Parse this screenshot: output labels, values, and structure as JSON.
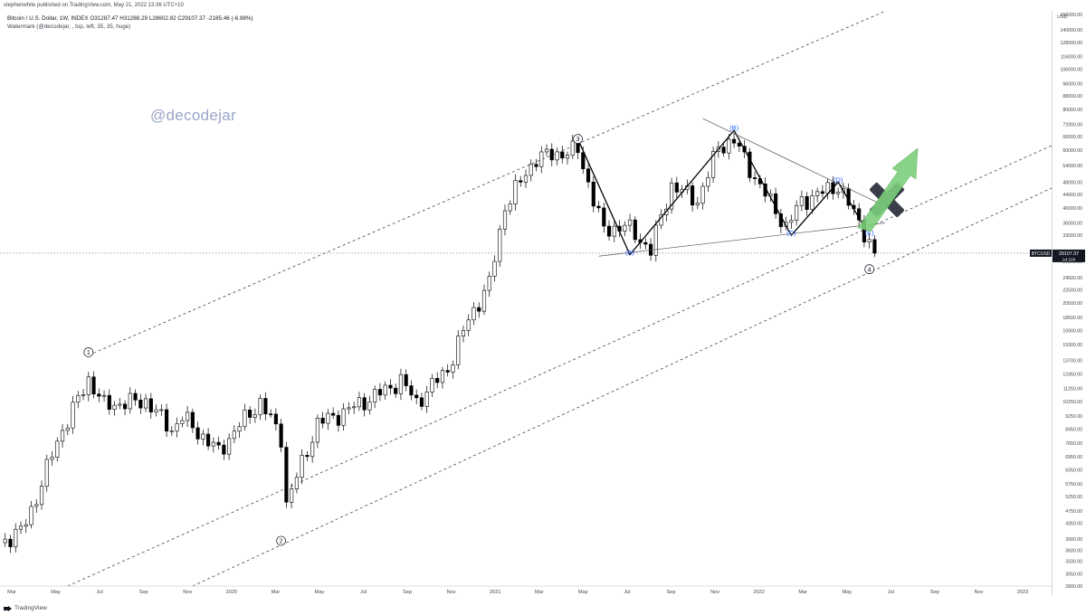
{
  "header": "stephenwhite published on TradingView.com, May 21, 2022 13:36 UTC+10",
  "legend": {
    "line1": "Bitcoin / U.S. Dollar, 1W, INDEX  O31287.47  H31288.29  L28602.82  C29107.37  -2185.46 (-6.98%)",
    "line2": "Watermark (@decodejar, , top, left, 35, 35, huge)"
  },
  "watermark": "@decodejar",
  "footer": {
    "brand": "TradingView"
  },
  "colors": {
    "candle_up_fill": "#ffffff",
    "candle_down_fill": "#000000",
    "candle_outline": "#000000",
    "channel_line": "#434651",
    "arrow_green": "#7ccf7c",
    "cross": "#3a3e48",
    "wave_label_blue": "#2962ff"
  },
  "icons": [
    "tradingview-logo-icon",
    "x-cross-icon",
    "green-arrow-icon"
  ],
  "chart_data": {
    "type": "candlestick",
    "symbol": "BTCUSD",
    "interval": "1W",
    "y_axis": {
      "unit": "USD",
      "scale": "log",
      "ylim": [
        2800,
        160000
      ],
      "ticks": [
        156000,
        140000,
        128000,
        116000,
        106000,
        96000,
        88000,
        80000,
        72000,
        66000,
        60000,
        54000,
        48000,
        44000,
        40000,
        36000,
        33000,
        27500,
        24500,
        22500,
        20500,
        18500,
        16900,
        15300,
        13700,
        12450,
        11250,
        10250,
        9250,
        8450,
        7650,
        6950,
        6350,
        5750,
        5250,
        4750,
        4350,
        3900,
        3600,
        3330,
        3050,
        2800
      ],
      "tick_labels": [
        "156000.00",
        "140000.00",
        "128000.00",
        "116000.00",
        "106000.00",
        "96000.00",
        "88000.00",
        "80000.00",
        "72000.00",
        "66000.00",
        "60000.00",
        "54000.00",
        "48000.00",
        "44000.00",
        "40000.00",
        "36000.00",
        "33000.00",
        "27500.00",
        "24500.00",
        "22500.00",
        "20500.00",
        "18500.00",
        "16900.00",
        "15300.00",
        "13700.00",
        "12450.00",
        "11250.00",
        "10250.00",
        "9250.00",
        "8450.00",
        "7650.00",
        "6950.00",
        "6350.00",
        "5750.00",
        "5250.00",
        "4750.00",
        "4350.00",
        "3900.00",
        "3600.00",
        "3330.00",
        "3050.00",
        "2800.00"
      ]
    },
    "x_axis": {
      "labels": [
        "Mar",
        "May",
        "Jul",
        "Sep",
        "Nov",
        "2020",
        "Mar",
        "May",
        "Jul",
        "Sep",
        "Nov",
        "2021",
        "Mar",
        "May",
        "Jul",
        "Sep",
        "Nov",
        "2022",
        "Mar",
        "May",
        "Jul",
        "Sep",
        "Nov",
        "2023"
      ],
      "range": [
        "2019-02-25",
        "2023-01-09"
      ]
    },
    "price_label": {
      "symbol": "BTCUSD",
      "price": "29107.37",
      "countdown": "1d 21h",
      "value": 29107.37
    },
    "weekly_close_anchors": [
      [
        "2019-02-25",
        3800
      ],
      [
        "2019-03-25",
        4100
      ],
      [
        "2019-04-15",
        5200
      ],
      [
        "2019-05-13",
        7800
      ],
      [
        "2019-06-24",
        12000
      ],
      [
        "2019-07-15",
        10000
      ],
      [
        "2019-09-09",
        10300
      ],
      [
        "2019-10-14",
        8400
      ],
      [
        "2019-10-28",
        9200
      ],
      [
        "2019-12-16",
        7200
      ],
      [
        "2020-01-13",
        8700
      ],
      [
        "2020-02-10",
        10200
      ],
      [
        "2020-03-09",
        8000
      ],
      [
        "2020-03-16",
        5000
      ],
      [
        "2020-04-27",
        8800
      ],
      [
        "2020-06-01",
        9500
      ],
      [
        "2020-07-27",
        11100
      ],
      [
        "2020-08-17",
        11900
      ],
      [
        "2020-09-07",
        10200
      ],
      [
        "2020-10-19",
        12900
      ],
      [
        "2020-11-16",
        18300
      ],
      [
        "2020-12-14",
        23500
      ],
      [
        "2021-01-04",
        40500
      ],
      [
        "2021-02-15",
        57000
      ],
      [
        "2021-04-12",
        60000
      ],
      [
        "2021-05-17",
        34000
      ],
      [
        "2021-06-14",
        35500
      ],
      [
        "2021-07-19",
        29800
      ],
      [
        "2021-08-16",
        47000
      ],
      [
        "2021-09-20",
        42000
      ],
      [
        "2021-10-18",
        61500
      ],
      [
        "2021-11-08",
        64400
      ],
      [
        "2021-12-06",
        49500
      ],
      [
        "2022-01-17",
        35000
      ],
      [
        "2022-02-07",
        42000
      ],
      [
        "2022-03-28",
        46800
      ],
      [
        "2022-05-02",
        34000
      ],
      [
        "2022-05-09",
        31300
      ],
      [
        "2022-05-16",
        29107
      ]
    ],
    "wave_labels": [
      {
        "label": "1",
        "date": "2019-06-24",
        "price": 14500,
        "circled": true
      },
      {
        "label": "2",
        "date": "2020-03-09",
        "price": 3850,
        "circled": true
      },
      {
        "label": "3",
        "date": "2021-04-12",
        "price": 65000,
        "circled": true
      },
      {
        "label": "(A)",
        "date": "2021-06-21",
        "price": 28800
      },
      {
        "label": "(B)",
        "date": "2021-11-08",
        "price": 69000
      },
      {
        "label": "(C)",
        "date": "2022-01-24",
        "price": 33000
      },
      {
        "label": "(D)",
        "date": "2022-03-28",
        "price": 48000
      },
      {
        "label": "(E)",
        "date": "2022-05-09",
        "price": 33000
      },
      {
        "label": "4",
        "date": "2022-05-09",
        "price": 26000,
        "circled": true
      }
    ],
    "triangle_path": [
      [
        "2021-04-12",
        64900
      ],
      [
        "2021-06-21",
        28800
      ],
      [
        "2021-11-08",
        69000
      ],
      [
        "2022-01-24",
        33000
      ],
      [
        "2022-03-28",
        48000
      ],
      [
        "2022-05-02",
        35000
      ]
    ],
    "triangle_lines": [
      {
        "from": [
          "2021-05-10",
          28500
        ],
        "to": [
          "2022-05-30",
          36000
        ]
      },
      {
        "from": [
          "2021-09-27",
          75000
        ],
        "to": [
          "2022-05-30",
          40500
        ]
      }
    ],
    "channel_lines": [
      {
        "from": [
          "2019-06-24",
          14200
        ],
        "to": [
          "2022-06-27",
          170000
        ]
      },
      {
        "from": [
          "2019-05-27",
          2800
        ],
        "to": [
          "2023-01-09",
          62000
        ]
      },
      {
        "from": [
          "2019-11-11",
          2800
        ],
        "to": [
          "2023-01-09",
          46000
        ]
      }
    ]
  }
}
